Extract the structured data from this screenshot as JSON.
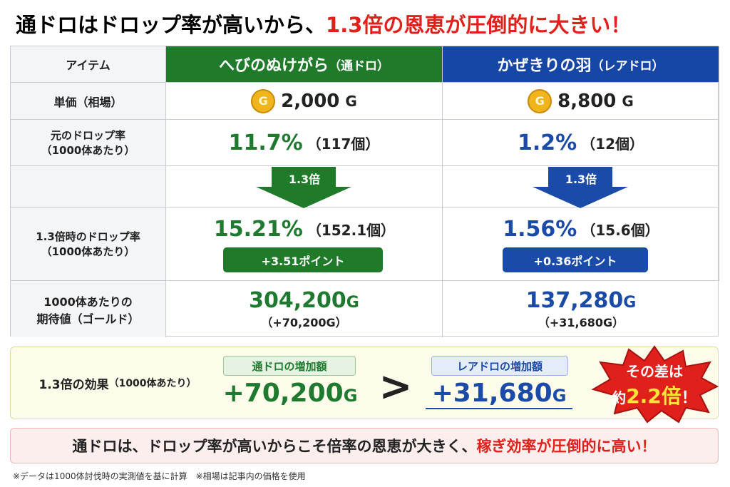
{
  "title": {
    "part1": "通ドロはドロップ率が高いから、",
    "part2": "1.3倍の恩恵が圧倒的に大きい！"
  },
  "table": {
    "row_labels": {
      "item": "アイテム",
      "price": "単価（相場）",
      "rate": [
        "元のドロップ率",
        "（1000体あたり）"
      ],
      "new_rate": [
        "1.3倍時のドロップ率",
        "（1000体あたり）"
      ],
      "expected": [
        "1000体あたりの",
        "期待値（ゴールド）"
      ]
    },
    "columns": [
      {
        "name": "へびのぬけがら",
        "tag": "（通ドロ）",
        "coin": "G",
        "price": "2,000",
        "price_unit": "G",
        "rate": "11.7%",
        "rate_count": "（117個）",
        "multiplier": "1.3倍",
        "new_rate": "15.21%",
        "new_count": "（152.1個）",
        "delta": "+3.51ポイント",
        "expected": "304,200",
        "expected_unit": "G",
        "expected_gain": "（+70,200G）"
      },
      {
        "name": "かぜきりの羽",
        "tag": "（レアドロ）",
        "coin": "G",
        "price": "8,800",
        "price_unit": "G",
        "rate": "1.2%",
        "rate_count": "（12個）",
        "multiplier": "1.3倍",
        "new_rate": "1.56%",
        "new_count": "（15.6個）",
        "delta": "+0.36ポイント",
        "expected": "137,280",
        "expected_unit": "G",
        "expected_gain": "（+31,680G）"
      }
    ]
  },
  "effect": {
    "label": "1.3倍の効果",
    "label_note": "（1000体あたり）",
    "left_tag": "通ドロの増加額",
    "left_value": "+70,200",
    "left_unit": "G",
    "comparator": ">",
    "right_tag": "レアドロの増加額",
    "right_value": "+31,680",
    "right_unit": "G",
    "burst": {
      "line1": "その差は",
      "prefix": "約",
      "ratio": "2.2倍",
      "suffix": "！"
    }
  },
  "banner": {
    "part1": "通ドロは、ドロップ率が高いからこそ倍率の恩恵が大きく、",
    "part2": "稼ぎ効率が圧倒的に高い！"
  },
  "footnote": "※データは1000体討伐時の実測値を基に計算　※相場は記事内の価格を使用"
}
